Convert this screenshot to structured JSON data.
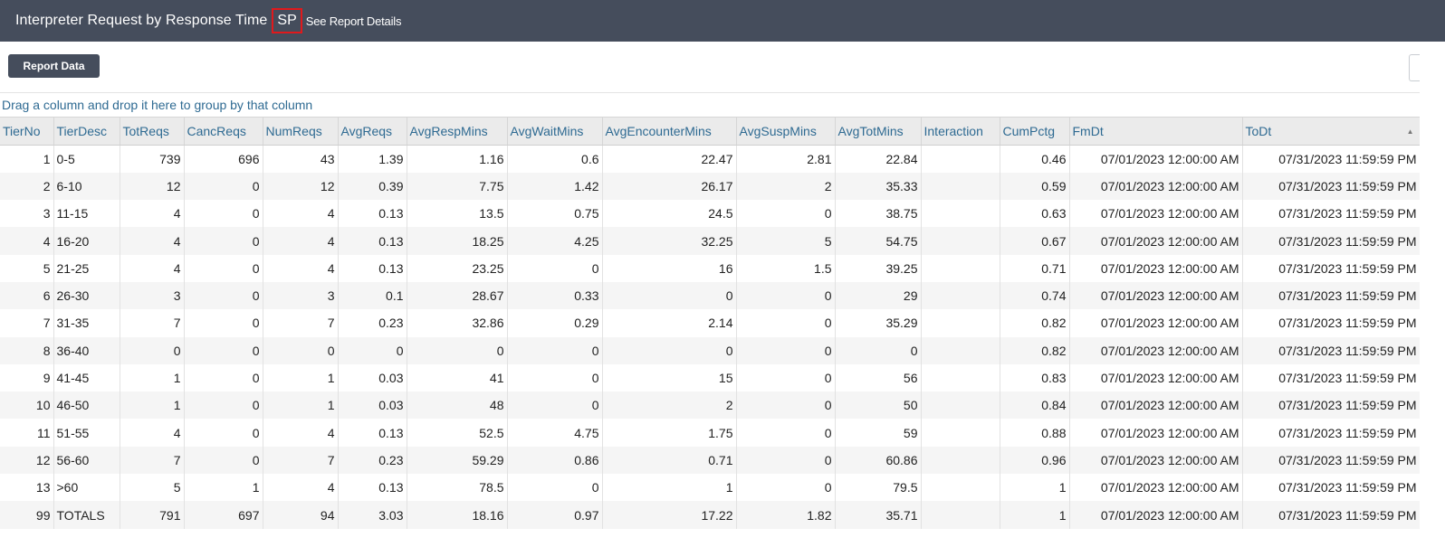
{
  "header": {
    "title": "Interpreter Request by Response Time",
    "badge": "SP",
    "details_link": "See Report Details"
  },
  "toolbar": {
    "report_data_label": "Report Data"
  },
  "group_panel": {
    "hint": "Drag a column and drop it here to group by that column"
  },
  "colors": {
    "header_bg": "#454d5c",
    "link_blue": "#2e6a92",
    "highlight_red": "#e0191c"
  },
  "table": {
    "sorted_column": "ToDt",
    "columns": [
      "TierNo",
      "TierDesc",
      "TotReqs",
      "CancReqs",
      "NumReqs",
      "AvgReqs",
      "AvgRespMins",
      "AvgWaitMins",
      "AvgEncounterMins",
      "AvgSuspMins",
      "AvgTotMins",
      "Interaction",
      "CumPctg",
      "FmDt",
      "ToDt"
    ],
    "rows": [
      [
        "1",
        "0-5",
        "739",
        "696",
        "43",
        "1.39",
        "1.16",
        "0.6",
        "22.47",
        "2.81",
        "22.84",
        "",
        "0.46",
        "07/01/2023 12:00:00 AM",
        "07/31/2023 11:59:59 PM"
      ],
      [
        "2",
        "6-10",
        "12",
        "0",
        "12",
        "0.39",
        "7.75",
        "1.42",
        "26.17",
        "2",
        "35.33",
        "",
        "0.59",
        "07/01/2023 12:00:00 AM",
        "07/31/2023 11:59:59 PM"
      ],
      [
        "3",
        "11-15",
        "4",
        "0",
        "4",
        "0.13",
        "13.5",
        "0.75",
        "24.5",
        "0",
        "38.75",
        "",
        "0.63",
        "07/01/2023 12:00:00 AM",
        "07/31/2023 11:59:59 PM"
      ],
      [
        "4",
        "16-20",
        "4",
        "0",
        "4",
        "0.13",
        "18.25",
        "4.25",
        "32.25",
        "5",
        "54.75",
        "",
        "0.67",
        "07/01/2023 12:00:00 AM",
        "07/31/2023 11:59:59 PM"
      ],
      [
        "5",
        "21-25",
        "4",
        "0",
        "4",
        "0.13",
        "23.25",
        "0",
        "16",
        "1.5",
        "39.25",
        "",
        "0.71",
        "07/01/2023 12:00:00 AM",
        "07/31/2023 11:59:59 PM"
      ],
      [
        "6",
        "26-30",
        "3",
        "0",
        "3",
        "0.1",
        "28.67",
        "0.33",
        "0",
        "0",
        "29",
        "",
        "0.74",
        "07/01/2023 12:00:00 AM",
        "07/31/2023 11:59:59 PM"
      ],
      [
        "7",
        "31-35",
        "7",
        "0",
        "7",
        "0.23",
        "32.86",
        "0.29",
        "2.14",
        "0",
        "35.29",
        "",
        "0.82",
        "07/01/2023 12:00:00 AM",
        "07/31/2023 11:59:59 PM"
      ],
      [
        "8",
        "36-40",
        "0",
        "0",
        "0",
        "0",
        "0",
        "0",
        "0",
        "0",
        "0",
        "",
        "0.82",
        "07/01/2023 12:00:00 AM",
        "07/31/2023 11:59:59 PM"
      ],
      [
        "9",
        "41-45",
        "1",
        "0",
        "1",
        "0.03",
        "41",
        "0",
        "15",
        "0",
        "56",
        "",
        "0.83",
        "07/01/2023 12:00:00 AM",
        "07/31/2023 11:59:59 PM"
      ],
      [
        "10",
        "46-50",
        "1",
        "0",
        "1",
        "0.03",
        "48",
        "0",
        "2",
        "0",
        "50",
        "",
        "0.84",
        "07/01/2023 12:00:00 AM",
        "07/31/2023 11:59:59 PM"
      ],
      [
        "11",
        "51-55",
        "4",
        "0",
        "4",
        "0.13",
        "52.5",
        "4.75",
        "1.75",
        "0",
        "59",
        "",
        "0.88",
        "07/01/2023 12:00:00 AM",
        "07/31/2023 11:59:59 PM"
      ],
      [
        "12",
        "56-60",
        "7",
        "0",
        "7",
        "0.23",
        "59.29",
        "0.86",
        "0.71",
        "0",
        "60.86",
        "",
        "0.96",
        "07/01/2023 12:00:00 AM",
        "07/31/2023 11:59:59 PM"
      ],
      [
        "13",
        ">60",
        "5",
        "1",
        "4",
        "0.13",
        "78.5",
        "0",
        "1",
        "0",
        "79.5",
        "",
        "1",
        "07/01/2023 12:00:00 AM",
        "07/31/2023 11:59:59 PM"
      ],
      [
        "99",
        "TOTALS",
        "791",
        "697",
        "94",
        "3.03",
        "18.16",
        "0.97",
        "17.22",
        "1.82",
        "35.71",
        "",
        "1",
        "07/01/2023 12:00:00 AM",
        "07/31/2023 11:59:59 PM"
      ]
    ]
  }
}
